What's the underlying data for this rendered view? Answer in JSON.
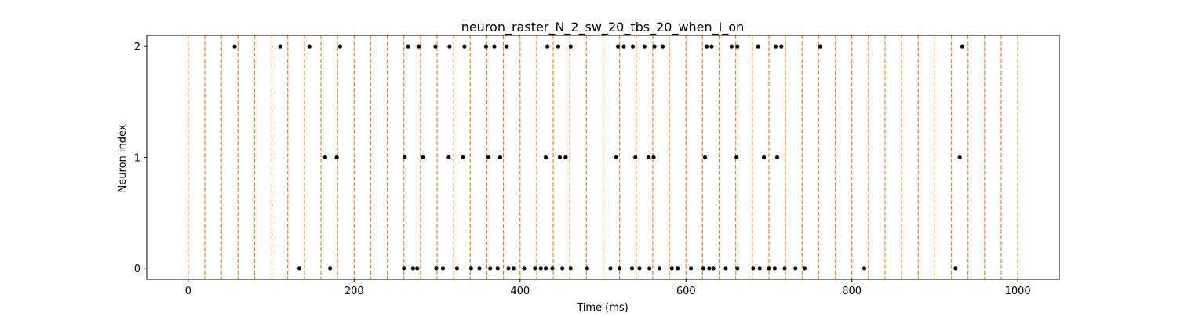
{
  "chart_data": {
    "type": "scatter",
    "title": "neuron_raster_N_2_sw_20_tbs_20_when_I_on",
    "xlabel": "Time (ms)",
    "ylabel": "Neuron index",
    "xlim": [
      -50,
      1050
    ],
    "ylim": [
      -0.1,
      2.1
    ],
    "x_ticks": [
      0,
      200,
      400,
      600,
      800,
      1000
    ],
    "y_ticks": [
      0,
      1,
      2
    ],
    "grid": false,
    "legend": "none",
    "vlines": {
      "color": "#ff7f0e",
      "style": "dashed",
      "x": [
        0,
        20,
        40,
        60,
        80,
        100,
        120,
        140,
        160,
        180,
        200,
        220,
        240,
        260,
        280,
        300,
        320,
        340,
        360,
        380,
        400,
        420,
        440,
        460,
        480,
        500,
        520,
        540,
        560,
        580,
        600,
        620,
        640,
        660,
        680,
        700,
        720,
        740,
        760,
        780,
        800,
        820,
        840,
        860,
        880,
        900,
        920,
        940,
        960,
        980,
        1000
      ]
    },
    "marker_color": "#000000",
    "series": [
      {
        "neuron": 0,
        "x": [
          134,
          171,
          260,
          271,
          276,
          299,
          307,
          324,
          341,
          351,
          364,
          373,
          386,
          392,
          405,
          418,
          425,
          431,
          439,
          451,
          461,
          481,
          509,
          520,
          535,
          544,
          556,
          568,
          583,
          590,
          606,
          621,
          628,
          633,
          648,
          662,
          681,
          689,
          700,
          707,
          719,
          732,
          743,
          815,
          925
        ]
      },
      {
        "neuron": 1,
        "x": [
          165,
          179,
          261,
          283,
          314,
          331,
          362,
          376,
          431,
          448,
          455,
          516,
          539,
          555,
          561,
          623,
          661,
          694,
          710,
          930
        ]
      },
      {
        "neuron": 2,
        "x": [
          56,
          111,
          146,
          183,
          265,
          278,
          298,
          315,
          333,
          359,
          369,
          384,
          433,
          446,
          461,
          518,
          525,
          536,
          550,
          562,
          572,
          625,
          631,
          655,
          662,
          687,
          708,
          715,
          762,
          933
        ]
      }
    ]
  }
}
